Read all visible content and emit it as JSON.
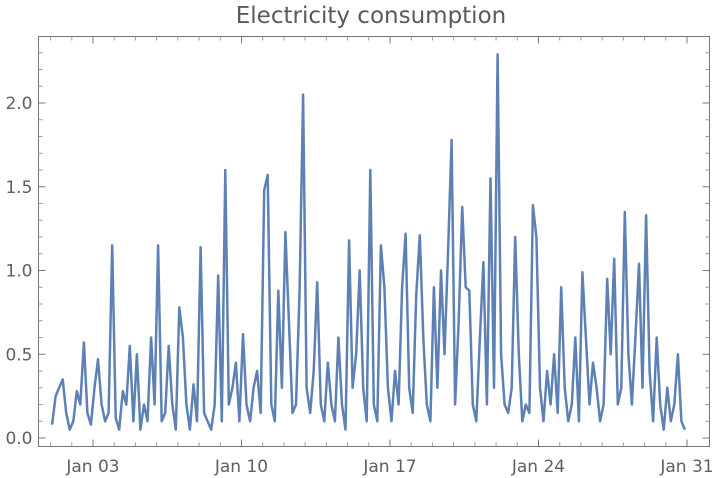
{
  "chart_data": {
    "type": "line",
    "title": "Electricity consumption",
    "xlabel": "",
    "ylabel": "",
    "x_start_day": 1,
    "samples_per_day": 6,
    "xlim_days": [
      0.0,
      32.0
    ],
    "ylim": [
      -0.05,
      2.4
    ],
    "x_ticks": [
      {
        "day": 3,
        "label": "Jan 03"
      },
      {
        "day": 10,
        "label": "Jan 10"
      },
      {
        "day": 17,
        "label": "Jan 17"
      },
      {
        "day": 24,
        "label": "Jan 24"
      },
      {
        "day": 31,
        "label": "Jan 31"
      }
    ],
    "y_ticks": [
      {
        "value": 0.0,
        "label": "0.0"
      },
      {
        "value": 0.5,
        "label": "0.5"
      },
      {
        "value": 1.0,
        "label": "1.0"
      },
      {
        "value": 1.5,
        "label": "1.5"
      },
      {
        "value": 2.0,
        "label": "2.0"
      }
    ],
    "grid": false,
    "color": "#5e81b5",
    "series": [
      {
        "name": "consumption",
        "values": [
          0.08,
          0.25,
          0.3,
          0.35,
          0.15,
          0.05,
          0.1,
          0.28,
          0.2,
          0.57,
          0.15,
          0.08,
          0.3,
          0.47,
          0.2,
          0.1,
          0.15,
          1.15,
          0.12,
          0.05,
          0.28,
          0.2,
          0.55,
          0.1,
          0.5,
          0.05,
          0.2,
          0.1,
          0.6,
          0.2,
          1.15,
          0.1,
          0.15,
          0.55,
          0.2,
          0.05,
          0.78,
          0.6,
          0.2,
          0.05,
          0.32,
          0.1,
          1.14,
          0.15,
          0.1,
          0.05,
          0.2,
          0.97,
          0.1,
          1.6,
          0.2,
          0.3,
          0.45,
          0.1,
          0.62,
          0.2,
          0.1,
          0.3,
          0.4,
          0.15,
          1.48,
          1.57,
          0.2,
          0.1,
          0.88,
          0.3,
          1.23,
          0.7,
          0.15,
          0.2,
          0.88,
          2.05,
          0.3,
          0.15,
          0.4,
          0.93,
          0.2,
          0.1,
          0.45,
          0.2,
          0.1,
          0.6,
          0.2,
          0.05,
          1.18,
          0.3,
          0.5,
          1.0,
          0.3,
          0.1,
          1.6,
          0.2,
          0.1,
          1.15,
          0.9,
          0.3,
          0.1,
          0.4,
          0.2,
          0.9,
          1.22,
          0.3,
          0.15,
          0.85,
          1.21,
          0.6,
          0.2,
          0.1,
          0.9,
          0.3,
          1.0,
          0.5,
          1.12,
          1.78,
          0.2,
          0.7,
          1.38,
          0.9,
          0.88,
          0.2,
          0.1,
          0.6,
          1.05,
          0.2,
          1.55,
          0.3,
          2.29,
          0.5,
          0.2,
          0.15,
          0.3,
          1.2,
          0.5,
          0.1,
          0.2,
          0.15,
          1.39,
          1.2,
          0.3,
          0.1,
          0.4,
          0.2,
          0.5,
          0.15,
          0.9,
          0.3,
          0.1,
          0.2,
          0.6,
          0.1,
          0.99,
          0.6,
          0.2,
          0.45,
          0.3,
          0.1,
          0.2,
          0.95,
          0.5,
          1.07,
          0.2,
          0.3,
          1.35,
          0.5,
          0.2,
          0.6,
          1.04,
          0.3,
          1.33,
          0.4,
          0.1,
          0.6,
          0.2,
          0.05,
          0.3,
          0.1,
          0.2,
          0.5,
          0.1,
          0.05
        ]
      }
    ]
  }
}
